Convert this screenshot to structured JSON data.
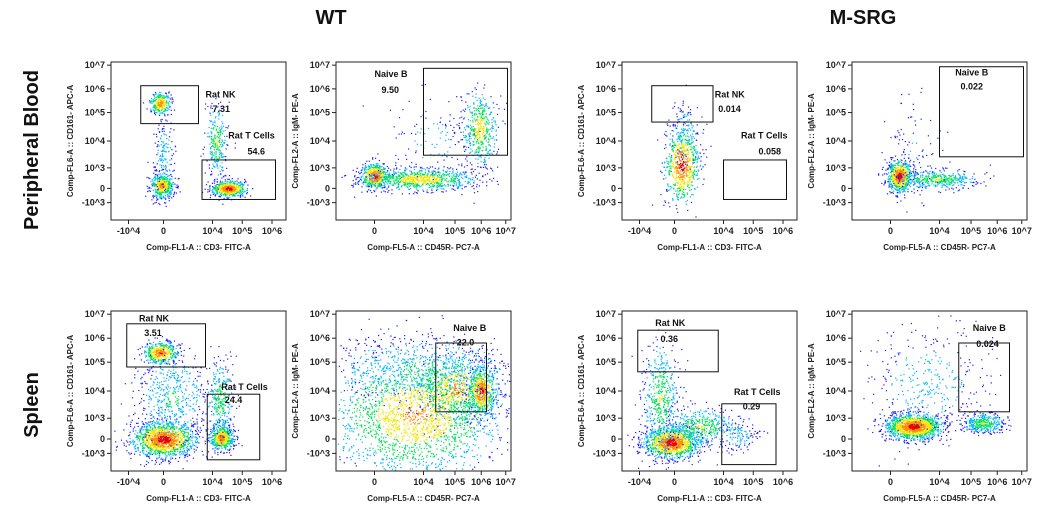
{
  "figure": {
    "group_titles": [
      "WT",
      "M-SRG"
    ],
    "row_titles": [
      "Peripheral Blood",
      "Spleen"
    ],
    "colors": {
      "density_scale": [
        "#1a1aff",
        "#00b4ff",
        "#00e05a",
        "#f2e600",
        "#ff8c00",
        "#e80000"
      ],
      "gate_stroke": "#111111",
      "frame": "#222222"
    }
  },
  "chart_data": [
    {
      "type": "scatter",
      "id": "wt-pb-nk-t",
      "group": "WT",
      "tissue": "Peripheral Blood",
      "xlabel": "Comp-FL1-A :: CD3- FITC-A",
      "ylabel": "Comp-FL6-A :: CD161- APC-A",
      "x_ticks": [
        "-10^4",
        "0",
        "10^4",
        "10^5",
        "10^6"
      ],
      "y_ticks": [
        "10^7",
        "10^6",
        "10^5",
        "10^4",
        "10^3",
        "0",
        "-10^3"
      ],
      "scale": "biexponential",
      "gates": [
        {
          "name": "Rat NK",
          "value": "7.31"
        },
        {
          "name": "Rat T Cells",
          "value": "54.6"
        }
      ]
    },
    {
      "type": "scatter",
      "id": "wt-pb-b",
      "group": "WT",
      "tissue": "Peripheral Blood",
      "xlabel": "Comp-FL5-A :: CD45R- PC7-A",
      "ylabel": "Comp-FL2-A :: IgM- PE-A",
      "x_ticks": [
        "0",
        "10^4",
        "10^5",
        "10^6",
        "10^7"
      ],
      "y_ticks": [
        "10^7",
        "10^6",
        "10^5",
        "10^4",
        "10^3",
        "0",
        "-10^3"
      ],
      "scale": "biexponential",
      "gates": [
        {
          "name": "Naive B",
          "value": "9.50"
        }
      ]
    },
    {
      "type": "scatter",
      "id": "msrg-pb-nk-t",
      "group": "M-SRG",
      "tissue": "Peripheral Blood",
      "xlabel": "Comp-FL1-A :: CD3- FITC-A",
      "ylabel": "Comp-FL6-A :: CD161- APC-A",
      "x_ticks": [
        "-10^4",
        "0",
        "10^4",
        "10^5",
        "10^6"
      ],
      "y_ticks": [
        "10^7",
        "10^6",
        "10^5",
        "10^4",
        "10^3",
        "0",
        "-10^3"
      ],
      "scale": "biexponential",
      "gates": [
        {
          "name": "Rat NK",
          "value": "0.014"
        },
        {
          "name": "Rat T Cells",
          "value": "0.058"
        }
      ]
    },
    {
      "type": "scatter",
      "id": "msrg-pb-b",
      "group": "M-SRG",
      "tissue": "Peripheral Blood",
      "xlabel": "Comp-FL5-A :: CD45R- PC7-A",
      "ylabel": "Comp-FL2-A :: IgM- PE-A",
      "x_ticks": [
        "0",
        "10^4",
        "10^5",
        "10^6",
        "10^7"
      ],
      "y_ticks": [
        "10^7",
        "10^6",
        "10^5",
        "10^4",
        "10^3",
        "0",
        "-10^3"
      ],
      "scale": "biexponential",
      "gates": [
        {
          "name": "Naive B",
          "value": "0.022"
        }
      ]
    },
    {
      "type": "scatter",
      "id": "wt-sp-nk-t",
      "group": "WT",
      "tissue": "Spleen",
      "xlabel": "Comp-FL1-A :: CD3- FITC-A",
      "ylabel": "Comp-FL6-A :: CD161- APC-A",
      "x_ticks": [
        "-10^4",
        "0",
        "10^4",
        "10^5",
        "10^6"
      ],
      "y_ticks": [
        "10^7",
        "10^6",
        "10^5",
        "10^4",
        "10^3",
        "0",
        "-10^3"
      ],
      "scale": "biexponential",
      "gates": [
        {
          "name": "Rat NK",
          "value": "3.51"
        },
        {
          "name": "Rat T Cells",
          "value": "24.4"
        }
      ]
    },
    {
      "type": "scatter",
      "id": "wt-sp-b",
      "group": "WT",
      "tissue": "Spleen",
      "xlabel": "Comp-FL5-A :: CD45R- PC7-A",
      "ylabel": "Comp-FL2-A :: IgM- PE-A",
      "x_ticks": [
        "0",
        "10^4",
        "10^5",
        "10^6",
        "10^7"
      ],
      "y_ticks": [
        "10^7",
        "10^6",
        "10^5",
        "10^4",
        "10^3",
        "0",
        "-10^3"
      ],
      "scale": "biexponential",
      "gates": [
        {
          "name": "Naive B",
          "value": "22.0"
        }
      ]
    },
    {
      "type": "scatter",
      "id": "msrg-sp-nk-t",
      "group": "M-SRG",
      "tissue": "Spleen",
      "xlabel": "Comp-FL1-A :: CD3- FITC-A",
      "ylabel": "Comp-FL6-A :: CD161- APC-A",
      "x_ticks": [
        "-10^4",
        "0",
        "10^4",
        "10^5",
        "10^6"
      ],
      "y_ticks": [
        "10^7",
        "10^6",
        "10^5",
        "10^4",
        "10^3",
        "0",
        "-10^3"
      ],
      "scale": "biexponential",
      "gates": [
        {
          "name": "Rat NK",
          "value": "0.36"
        },
        {
          "name": "Rat T Cells",
          "value": "0.29"
        }
      ]
    },
    {
      "type": "scatter",
      "id": "msrg-sp-b",
      "group": "M-SRG",
      "tissue": "Spleen",
      "xlabel": "Comp-FL5-A :: CD45R- PC7-A",
      "ylabel": "Comp-FL2-A :: IgM- PE-A",
      "x_ticks": [
        "0",
        "10^4",
        "10^5",
        "10^6",
        "10^7"
      ],
      "y_ticks": [
        "10^7",
        "10^6",
        "10^5",
        "10^4",
        "10^3",
        "0",
        "-10^3"
      ],
      "scale": "biexponential",
      "gates": [
        {
          "name": "Naive B",
          "value": "0.024"
        }
      ]
    }
  ]
}
